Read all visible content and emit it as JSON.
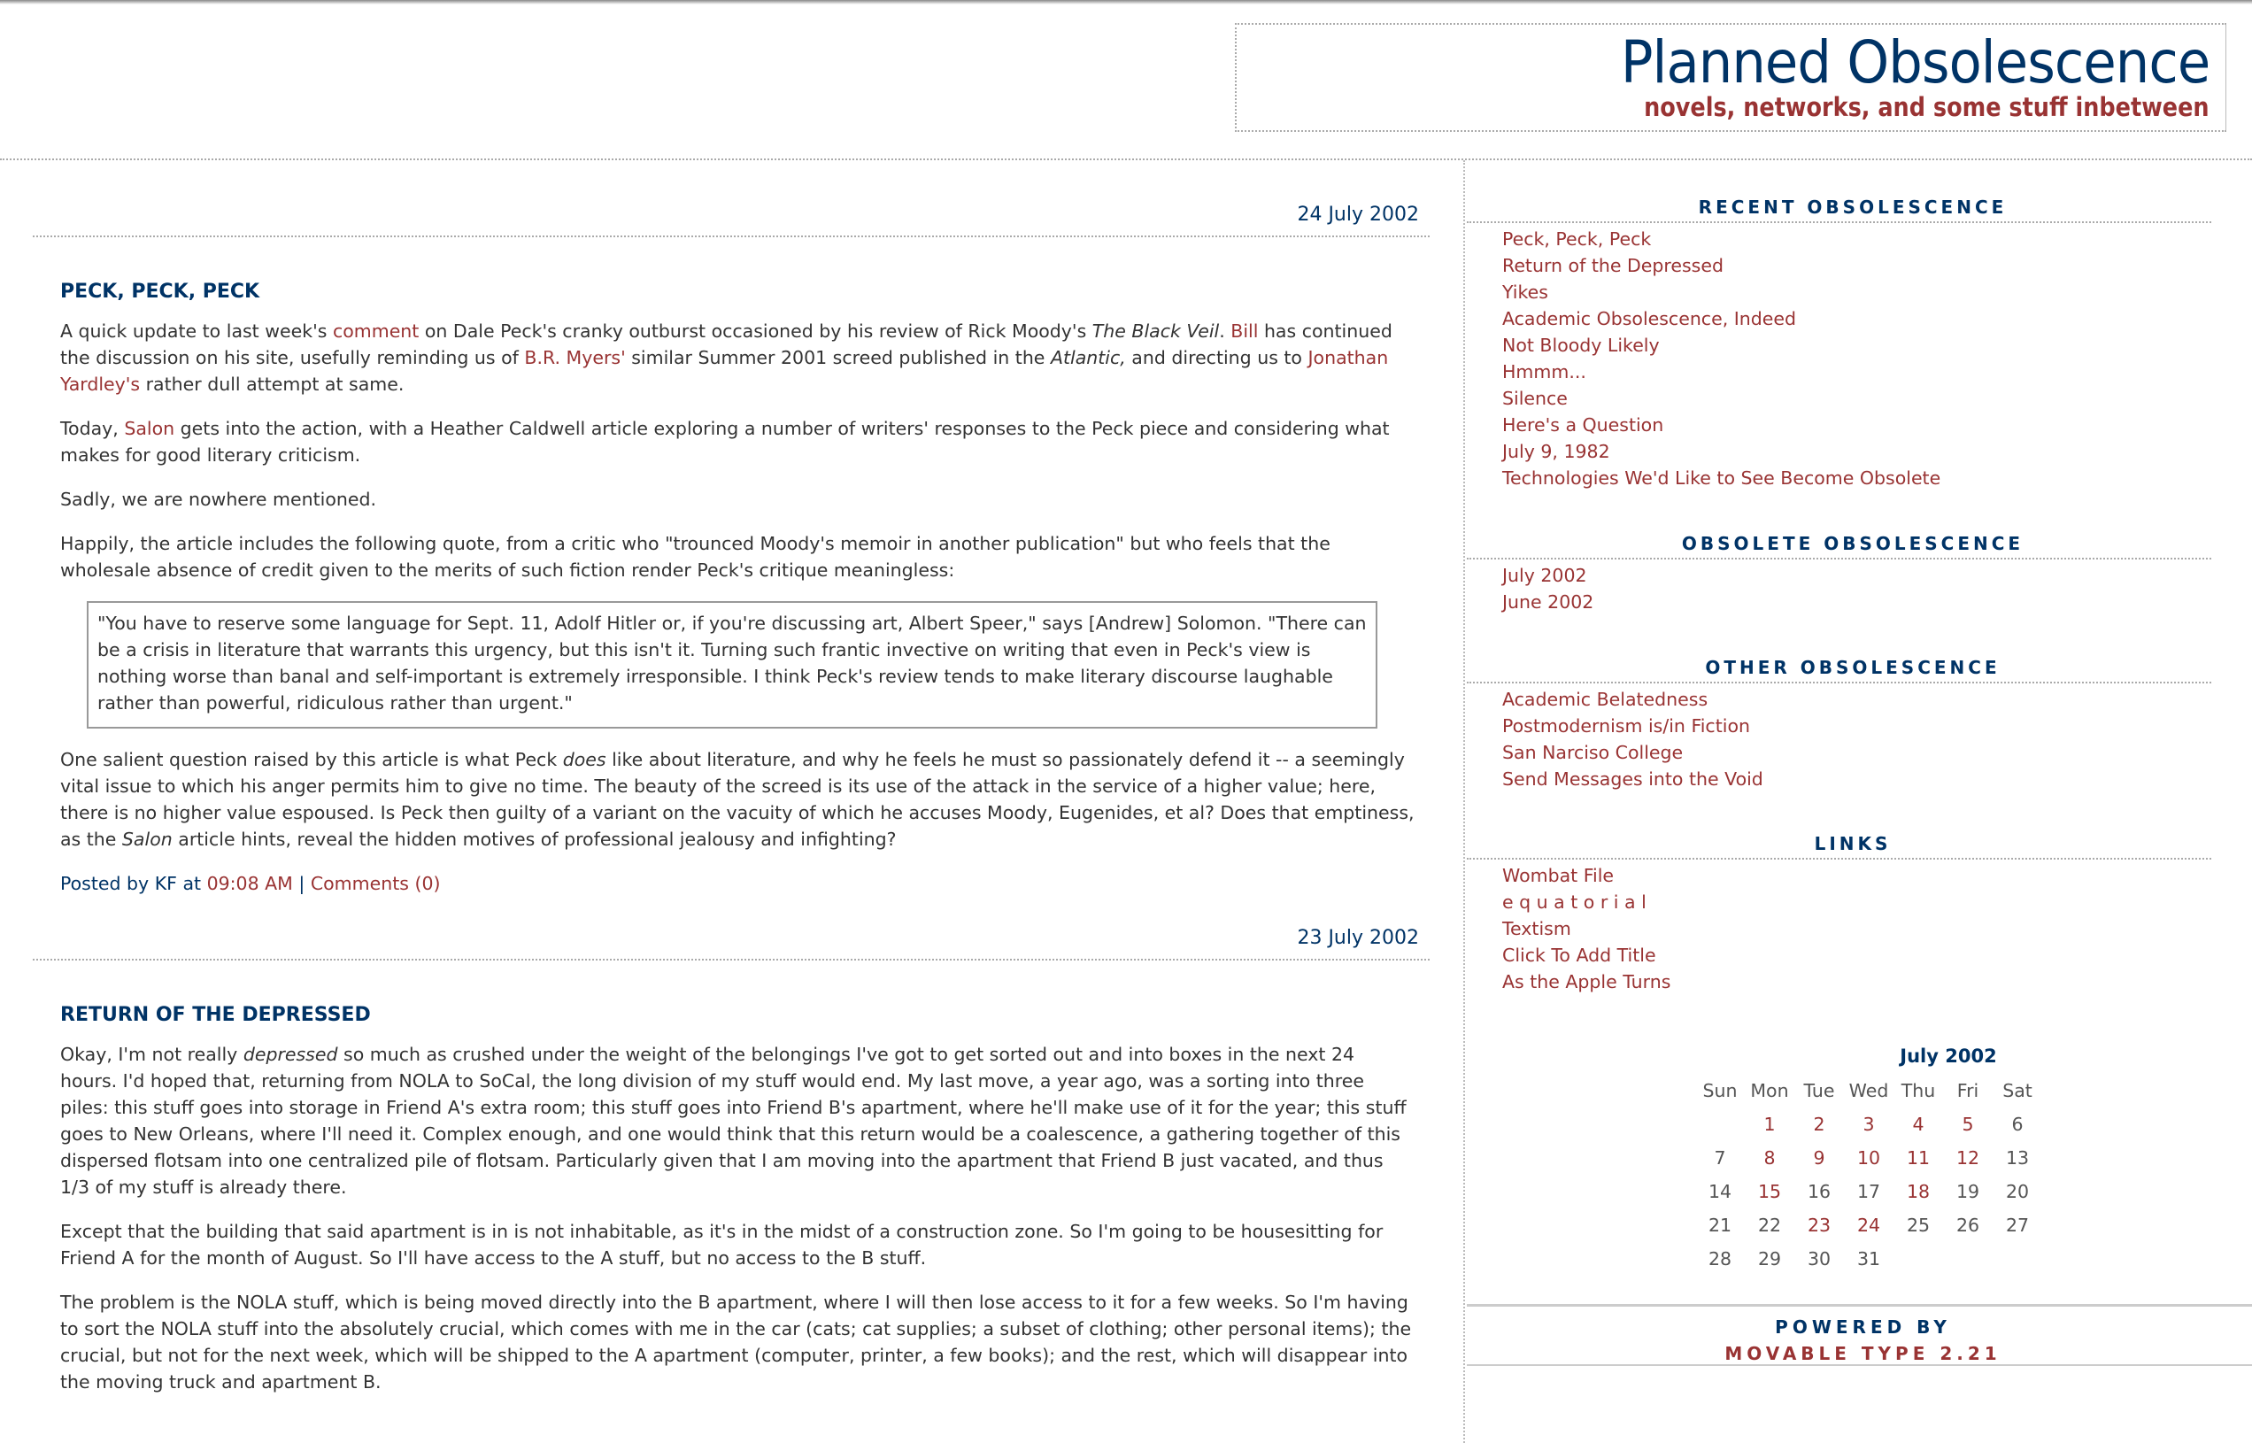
{
  "header": {
    "title": "Planned Obsolescence",
    "tagline": "novels, networks, and some stuff inbetween"
  },
  "posts": [
    {
      "date": "24 July 2002",
      "title": "PECK, PECK, PECK",
      "paragraphs": [
        [
          {
            "t": "A quick update to last week's "
          },
          {
            "t": "comment",
            "k": "link"
          },
          {
            "t": " on Dale Peck's cranky outburst occasioned by his review of Rick Moody's "
          },
          {
            "t": "The Black Veil",
            "k": "em"
          },
          {
            "t": ". "
          },
          {
            "t": "Bill",
            "k": "link"
          },
          {
            "t": " has continued the discussion on his site, usefully reminding us of "
          },
          {
            "t": "B.R. Myers'",
            "k": "link"
          },
          {
            "t": " similar Summer 2001 screed published in the "
          },
          {
            "t": "Atlantic,",
            "k": "em"
          },
          {
            "t": " and directing us to "
          },
          {
            "t": "Jonathan Yardley's",
            "k": "link"
          },
          {
            "t": " rather dull attempt at same."
          }
        ],
        [
          {
            "t": "Today, "
          },
          {
            "t": "Salon",
            "k": "link"
          },
          {
            "t": " gets into the action, with a Heather Caldwell article exploring a number of writers' responses to the Peck piece and considering what makes for good literary criticism."
          }
        ],
        [
          {
            "t": "Sadly, we are nowhere mentioned."
          }
        ],
        [
          {
            "t": "Happily, the article includes the following quote, from a critic who \"trounced Moody's memoir in another publication\" but who feels that the wholesale absence of credit given to the merits of such fiction render Peck's critique meaningless:"
          }
        ]
      ],
      "quote": "\"You have to reserve some language for Sept. 11, Adolf Hitler or, if you're discussing art, Albert Speer,\" says [Andrew] Solomon. \"There can be a crisis in literature that warrants this urgency, but this isn't it. Turning such frantic invective on writing that even in Peck's view is nothing worse than banal and self-important is extremely irresponsible. I think Peck's review tends to make literary discourse laughable rather than powerful, ridiculous rather than urgent.\"",
      "after": [
        [
          {
            "t": "One salient question raised by this article is what Peck "
          },
          {
            "t": "does",
            "k": "em"
          },
          {
            "t": " like about literature, and why he feels he must so passionately defend it -- a seemingly vital issue to which his anger permits him to give no time. The beauty of the screed is its use of the attack in the service of a higher value; here, there is no higher value espoused. Is Peck then guilty of a variant on the vacuity of which he accuses Moody, Eugenides, et al? Does that emptiness, as the "
          },
          {
            "t": "Salon",
            "k": "em"
          },
          {
            "t": " article hints, reveal the hidden motives of professional jealousy and infighting?"
          }
        ]
      ],
      "byline": {
        "prefix": "Posted by KF at ",
        "time": "09:08 AM",
        "sep": " | ",
        "comments": "Comments (0)"
      }
    },
    {
      "date": "23 July 2002",
      "title": "RETURN OF THE DEPRESSED",
      "paragraphs": [
        [
          {
            "t": "Okay, I'm not really "
          },
          {
            "t": "depressed",
            "k": "em"
          },
          {
            "t": " so much as crushed under the weight of the belongings I've got to get sorted out and into boxes in the next 24 hours. I'd hoped that, returning from NOLA to SoCal, the long division of my stuff would end. My last move, a year ago, was a sorting into three piles: this stuff goes into storage in Friend A's extra room; this stuff goes into Friend B's apartment, where he'll make use of it for the year; this stuff goes to New Orleans, where I'll need it. Complex enough, and one would think that this return would be a coalescence, a gathering together of this dispersed flotsam into one centralized pile of flotsam. Particularly given that I am moving into the apartment that Friend B just vacated, and thus 1/3 of my stuff is already there."
          }
        ],
        [
          {
            "t": "Except that the building that said apartment is in is not inhabitable, as it's in the midst of a construction zone. So I'm going to be housesitting for Friend A for the month of August. So I'll have access to the A stuff, but no access to the B stuff."
          }
        ],
        [
          {
            "t": "The problem is the NOLA stuff, which is being moved directly into the B apartment, where I will then lose access to it for a few weeks. So I'm having to sort the NOLA stuff into the absolutely crucial, which comes with me in the car (cats; cat supplies; a subset of clothing; other personal items); the crucial, but not for the next week, which will be shipped to the A apartment (computer, printer, a few books); and the rest, which will disappear into the moving truck and apartment B."
          }
        ]
      ]
    }
  ],
  "sidebar": {
    "sections": [
      {
        "heading": "RECENT OBSOLESCENCE",
        "links": [
          "Peck, Peck, Peck",
          "Return of the Depressed",
          "Yikes",
          "Academic Obsolescence, Indeed",
          "Not Bloody Likely",
          "Hmmm...",
          "Silence",
          "Here's a Question",
          "July 9, 1982",
          "Technologies We'd Like to See Become Obsolete"
        ]
      },
      {
        "heading": "OBSOLETE OBSOLESCENCE",
        "links": [
          "July 2002",
          "June 2002"
        ]
      },
      {
        "heading": "OTHER OBSOLESCENCE",
        "links": [
          "Academic Belatedness",
          "Postmodernism is/in Fiction",
          "San Narciso College",
          "Send Messages into the Void"
        ]
      },
      {
        "heading": "LINKS",
        "links": [
          "Wombat File",
          "e q u a t o r i a l",
          "Textism",
          "Click To Add Title",
          "As the Apple Turns"
        ]
      }
    ],
    "calendar": {
      "title": "July 2002",
      "days": [
        "Sun",
        "Mon",
        "Tue",
        "Wed",
        "Thu",
        "Fri",
        "Sat"
      ],
      "weeks": [
        [
          "",
          "1",
          "2",
          "3",
          "4",
          "5",
          "6"
        ],
        [
          "7",
          "8",
          "9",
          "10",
          "11",
          "12",
          "13"
        ],
        [
          "14",
          "15",
          "16",
          "17",
          "18",
          "19",
          "20"
        ],
        [
          "21",
          "22",
          "23",
          "24",
          "25",
          "26",
          "27"
        ],
        [
          "28",
          "29",
          "30",
          "31",
          "",
          "",
          ""
        ]
      ],
      "linked_days": [
        "1",
        "2",
        "3",
        "4",
        "5",
        "8",
        "9",
        "10",
        "11",
        "12",
        "15",
        "18",
        "23",
        "24"
      ]
    },
    "powered_by": "POWERED BY",
    "powered_link": "MOVABLE TYPE 2.21"
  },
  "colors": {
    "navy": "#003366",
    "link": "#993333",
    "text": "#333333"
  }
}
